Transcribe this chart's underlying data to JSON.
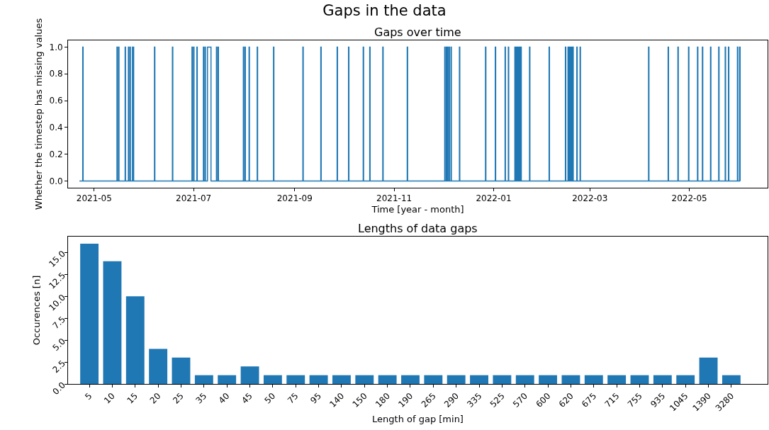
{
  "chart_data": [
    {
      "type": "line",
      "title": "Gaps in the data",
      "subtitle": "Gaps over time",
      "xlabel": "Time [year - month]",
      "ylabel": "Whether the timestep has missing values",
      "xlim": [
        "2021-04-15",
        "2022-06-18"
      ],
      "ylim": [
        -0.05,
        1.05
      ],
      "xticks": [
        "2021-05",
        "2021-07",
        "2021-09",
        "2021-11",
        "2022-01",
        "2022-03",
        "2022-05"
      ],
      "yticks": [
        {
          "value": 0,
          "label": "0.0"
        },
        {
          "value": 0.2,
          "label": "0.2"
        },
        {
          "value": 0.4,
          "label": "0.4"
        },
        {
          "value": 0.6,
          "label": "0.6"
        },
        {
          "value": 0.8,
          "label": "0.8"
        },
        {
          "value": 1,
          "label": "1.0"
        }
      ],
      "series": [
        {
          "color": "#1f77b4",
          "x": [
            "2021-04-22",
            "2021-04-24",
            "2021-04-24",
            "2021-04-24T06:00",
            "2021-04-24T06:00",
            "2021-05-15",
            "2021-05-15",
            "2021-05-15T06:00",
            "2021-05-15T06:00",
            "2021-05-16",
            "2021-05-16",
            "2021-05-16T06:00",
            "2021-05-16T06:00",
            "2021-05-20",
            "2021-05-20",
            "2021-05-20T06:00",
            "2021-05-20T06:00",
            "2021-05-22",
            "2021-05-22",
            "2021-05-22T06:00",
            "2021-05-22T06:00",
            "2021-05-23",
            "2021-05-23",
            "2021-05-23T06:00",
            "2021-05-23T06:00",
            "2021-05-24T12:00",
            "2021-05-24T12:00",
            "2021-05-24T18:00",
            "2021-05-24T18:00",
            "2021-05-25",
            "2021-05-25",
            "2021-05-25T06:00",
            "2021-05-25T06:00",
            "2021-06-07",
            "2021-06-07",
            "2021-06-07T06:00",
            "2021-06-07T06:00",
            "2021-06-18",
            "2021-06-18",
            "2021-06-18T06:00",
            "2021-06-18T06:00",
            "2021-06-30",
            "2021-06-30",
            "2021-06-30T06:00",
            "2021-06-30T06:00",
            "2021-07-01",
            "2021-07-01",
            "2021-07-01T06:00",
            "2021-07-01T06:00",
            "2021-07-03",
            "2021-07-03",
            "2021-07-03T06:00",
            "2021-07-03T06:00",
            "2021-07-07",
            "2021-07-07",
            "2021-07-07T06:00",
            "2021-07-07T06:00",
            "2021-07-08",
            "2021-07-08",
            "2021-07-08T06:00",
            "2021-07-08T06:00",
            "2021-07-09T12:00",
            "2021-07-09T12:00",
            "2021-07-11T16:00",
            "2021-07-11T16:00",
            "2021-07-15",
            "2021-07-15",
            "2021-07-15T06:00",
            "2021-07-15T06:00",
            "2021-07-16",
            "2021-07-16",
            "2021-07-16T06:00",
            "2021-07-16T06:00",
            "2021-07-31T12:00",
            "2021-07-31T12:00",
            "2021-07-31T18:00",
            "2021-07-31T18:00",
            "2021-08-01T12:00",
            "2021-08-01T12:00",
            "2021-08-01T18:00",
            "2021-08-01T18:00",
            "2021-08-04",
            "2021-08-04",
            "2021-08-04T06:00",
            "2021-08-04T06:00",
            "2021-08-09",
            "2021-08-09",
            "2021-08-09T06:00",
            "2021-08-09T06:00",
            "2021-08-19",
            "2021-08-19",
            "2021-08-19T06:00",
            "2021-08-19T06:00",
            "2021-09-06",
            "2021-09-06",
            "2021-09-06T06:00",
            "2021-09-06T06:00",
            "2021-09-17",
            "2021-09-17",
            "2021-09-17T06:00",
            "2021-09-17T06:00",
            "2021-09-27",
            "2021-09-27",
            "2021-09-27T06:00",
            "2021-09-27T06:00",
            "2021-10-04",
            "2021-10-04",
            "2021-10-04T06:00",
            "2021-10-04T06:00",
            "2021-10-13",
            "2021-10-13",
            "2021-10-13T06:00",
            "2021-10-13T06:00",
            "2021-10-17",
            "2021-10-17",
            "2021-10-17T06:00",
            "2021-10-17T06:00",
            "2021-10-25",
            "2021-10-25",
            "2021-10-25T06:00",
            "2021-10-25T06:00",
            "2021-11-09",
            "2021-11-09",
            "2021-11-09T06:00",
            "2021-11-09T06:00",
            "2021-12-02",
            "2021-12-02",
            "2021-12-02T06:00",
            "2021-12-02T06:00",
            "2021-12-03",
            "2021-12-03",
            "2021-12-03T06:00",
            "2021-12-03T06:00",
            "2021-12-03T18:00",
            "2021-12-03T18:00",
            "2021-12-03T23:00",
            "2021-12-03T23:00",
            "2021-12-04T16:00",
            "2021-12-04T16:00",
            "2021-12-04T22:00",
            "2021-12-04T22:00",
            "2021-12-05T20:00",
            "2021-12-05T20:00",
            "2021-12-06T02:00",
            "2021-12-06T02:00",
            "2021-12-11",
            "2021-12-11",
            "2021-12-11T06:00",
            "2021-12-11T06:00",
            "2021-12-27",
            "2021-12-27",
            "2021-12-27T06:00",
            "2021-12-27T06:00",
            "2022-01-02",
            "2022-01-02",
            "2022-01-02T06:00",
            "2022-01-02T06:00",
            "2022-01-08",
            "2022-01-08",
            "2022-01-08T06:00",
            "2022-01-08T06:00",
            "2022-01-10",
            "2022-01-10",
            "2022-01-10T06:00",
            "2022-01-10T06:00",
            "2022-01-14",
            "2022-01-14",
            "2022-01-14T06:00",
            "2022-01-14T06:00",
            "2022-01-14T18:00",
            "2022-01-14T18:00",
            "2022-01-14T23:00",
            "2022-01-14T23:00",
            "2022-01-15T12:00",
            "2022-01-15T12:00",
            "2022-01-15T18:00",
            "2022-01-15T18:00",
            "2022-01-16T06:00",
            "2022-01-16T06:00",
            "2022-01-16T12:00",
            "2022-01-16T12:00",
            "2022-01-17",
            "2022-01-17",
            "2022-01-17T06:00",
            "2022-01-17T06:00",
            "2022-01-17T18:00",
            "2022-01-17T18:00",
            "2022-01-17T23:00",
            "2022-01-17T23:00",
            "2022-01-23",
            "2022-01-23",
            "2022-01-23T06:00",
            "2022-01-23T06:00",
            "2022-02-04",
            "2022-02-04",
            "2022-02-04T06:00",
            "2022-02-04T06:00",
            "2022-02-14",
            "2022-02-14",
            "2022-02-14T06:00",
            "2022-02-14T06:00",
            "2022-02-15T14:00",
            "2022-02-15T14:00",
            "2022-02-15T20:00",
            "2022-02-15T20:00",
            "2022-02-16T02:00",
            "2022-02-16T02:00",
            "2022-02-16T08:00",
            "2022-02-16T08:00",
            "2022-02-16T14:00",
            "2022-02-16T14:00",
            "2022-02-16T20:00",
            "2022-02-16T20:00",
            "2022-02-17T02:00",
            "2022-02-17T02:00",
            "2022-02-17T08:00",
            "2022-02-17T08:00",
            "2022-02-17T14:00",
            "2022-02-17T14:00",
            "2022-02-17T20:00",
            "2022-02-17T20:00",
            "2022-02-18T02:00",
            "2022-02-18T02:00",
            "2022-02-18T08:00",
            "2022-02-18T08:00",
            "2022-02-18T14:00",
            "2022-02-18T14:00",
            "2022-02-18T20:00",
            "2022-02-18T20:00",
            "2022-02-21",
            "2022-02-21",
            "2022-02-21T06:00",
            "2022-02-21T06:00",
            "2022-02-23",
            "2022-02-23",
            "2022-02-23T06:00",
            "2022-02-23T06:00",
            "2022-04-06",
            "2022-04-06",
            "2022-04-06T06:00",
            "2022-04-06T06:00",
            "2022-04-18",
            "2022-04-18",
            "2022-04-18T06:00",
            "2022-04-18T06:00",
            "2022-04-24",
            "2022-04-24",
            "2022-04-24T06:00",
            "2022-04-24T06:00",
            "2022-04-30T12:00",
            "2022-04-30T12:00",
            "2022-04-30T18:00",
            "2022-04-30T18:00",
            "2022-05-06",
            "2022-05-06",
            "2022-05-06T06:00",
            "2022-05-06T06:00",
            "2022-05-09",
            "2022-05-09",
            "2022-05-09T06:00",
            "2022-05-09T06:00",
            "2022-05-14",
            "2022-05-14",
            "2022-05-14T06:00",
            "2022-05-14T06:00",
            "2022-05-19",
            "2022-05-19",
            "2022-05-19T06:00",
            "2022-05-19T06:00",
            "2022-05-23",
            "2022-05-23",
            "2022-05-23T06:00",
            "2022-05-23T06:00",
            "2022-05-25",
            "2022-05-25",
            "2022-05-25T06:00",
            "2022-05-25T06:00",
            "2022-05-30T12:00",
            "2022-05-30T12:00",
            "2022-05-30T18:00",
            "2022-05-30T18:00",
            "2022-05-31T20:00",
            "2022-05-31T20:00",
            "2022-06-01T04:00",
            "2022-06-01T04:00"
          ],
          "values": [
            0,
            0,
            1,
            1,
            0,
            0,
            1,
            1,
            0,
            0,
            1,
            1,
            0,
            0,
            1,
            1,
            0,
            0,
            1,
            1,
            0,
            0,
            1,
            1,
            0,
            0,
            1,
            1,
            0,
            0,
            1,
            1,
            0,
            0,
            1,
            1,
            0,
            0,
            1,
            1,
            0,
            0,
            1,
            1,
            0,
            0,
            1,
            1,
            0,
            0,
            1,
            1,
            0,
            0,
            1,
            1,
            0,
            0,
            1,
            1,
            0,
            0,
            1,
            1,
            0,
            0,
            1,
            1,
            0,
            0,
            1,
            1,
            0,
            0,
            1,
            1,
            0,
            0,
            1,
            1,
            0,
            0,
            1,
            1,
            0,
            0,
            1,
            1,
            0,
            0,
            1,
            1,
            0,
            0,
            1,
            1,
            0,
            0,
            1,
            1,
            0,
            0,
            1,
            1,
            0,
            0,
            1,
            1,
            0,
            0,
            1,
            1,
            0,
            0,
            1,
            1,
            0,
            0,
            1,
            1,
            0,
            0,
            1,
            1,
            0,
            0,
            1,
            1,
            0,
            0,
            1,
            1,
            0,
            0,
            1,
            1,
            0,
            0,
            1,
            1,
            0,
            0,
            1,
            1,
            0,
            0,
            1,
            1,
            0,
            0,
            1,
            1,
            0,
            0,
            1,
            1,
            0,
            0,
            1,
            1,
            0,
            0,
            1,
            1,
            0,
            0,
            1,
            1,
            0,
            0,
            1,
            1,
            0,
            0,
            1,
            1,
            0,
            0,
            1,
            1,
            0,
            0,
            1,
            1,
            0,
            0,
            1,
            1,
            0,
            0,
            1,
            1,
            0,
            0,
            1,
            1,
            0,
            0,
            1,
            1,
            0,
            0,
            1,
            1,
            0,
            0,
            1,
            1,
            0,
            0,
            1,
            1,
            0,
            0,
            1,
            1,
            0,
            0,
            1,
            1,
            0,
            0,
            1,
            1,
            0,
            0,
            1,
            1,
            0,
            0,
            1,
            1,
            0,
            0,
            1,
            1,
            0,
            0,
            1,
            1,
            0,
            0,
            1,
            1,
            0,
            0,
            1,
            1,
            0,
            0,
            1,
            1,
            0,
            0,
            1,
            1,
            0,
            0,
            1,
            1,
            0,
            0,
            1,
            1,
            0,
            0,
            1,
            1,
            0,
            0,
            1,
            1,
            0,
            0,
            1,
            1,
            0,
            0,
            1,
            1,
            0,
            0,
            1,
            1,
            0
          ]
        }
      ]
    },
    {
      "type": "bar",
      "title": "Lengths of data gaps",
      "xlabel": "Length of gap [min]",
      "ylabel": "Occurences [n]",
      "categories": [
        "5",
        "10",
        "15",
        "20",
        "25",
        "35",
        "40",
        "45",
        "50",
        "75",
        "95",
        "140",
        "150",
        "180",
        "190",
        "265",
        "290",
        "335",
        "525",
        "570",
        "600",
        "620",
        "675",
        "715",
        "755",
        "935",
        "1045",
        "1390",
        "3280"
      ],
      "values": [
        16,
        14,
        10,
        4,
        3,
        1,
        1,
        2,
        1,
        1,
        1,
        1,
        1,
        1,
        1,
        1,
        1,
        1,
        1,
        1,
        1,
        1,
        1,
        1,
        1,
        1,
        1,
        3,
        1
      ],
      "color": "#1f77b4",
      "ylim": [
        0,
        16.8
      ],
      "yticks": [
        {
          "value": 0,
          "label": "0.0"
        },
        {
          "value": 2.5,
          "label": "2.5"
        },
        {
          "value": 5,
          "label": "5.0"
        },
        {
          "value": 7.5,
          "label": "7.5"
        },
        {
          "value": 10,
          "label": "10.0"
        },
        {
          "value": 12.5,
          "label": "12.5"
        },
        {
          "value": 15,
          "label": "15.0"
        }
      ]
    }
  ]
}
